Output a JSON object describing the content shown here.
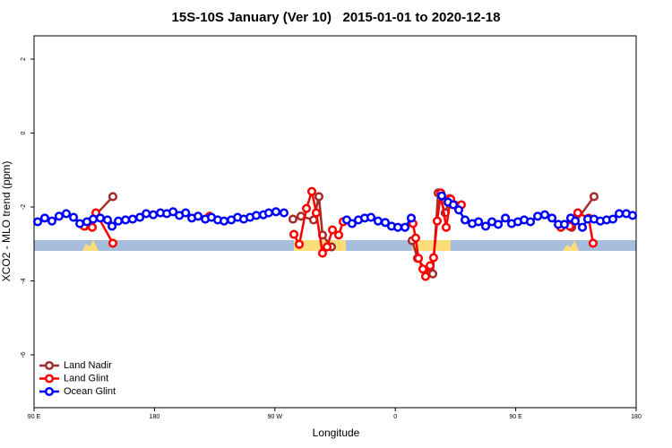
{
  "chart_data": {
    "type": "line",
    "title": "15S-10S January (Ver 10)   2015-01-01 to 2020-12-18",
    "x_label": "Longitude",
    "y_label": "XCO2 - MLO trend (ppm)",
    "xlim": [
      90,
      540
    ],
    "xticks": [
      {
        "value": 90,
        "label": "90 E"
      },
      180,
      {
        "value": 270,
        "label": "90 W"
      },
      {
        "value": 360,
        "label": "0"
      },
      {
        "value": 450,
        "label": "90 E"
      },
      {
        "value": 540,
        "label": "180"
      }
    ],
    "ylim": [
      -7.43,
      2.63
    ],
    "yticks": [
      2,
      0,
      -2,
      -4,
      -6
    ],
    "legend": "bottom-left",
    "series": [
      {
        "name": "Land Nadir",
        "color": "#a52a2a",
        "x": [
          128.2,
          148.9,
          null,
          283.5,
          289.5,
          298.9,
          302.9,
          305.6,
          312.3,
          null,
          372.6,
          376.6,
          384.0,
          388.0,
          392.0,
          397.3,
          400.7,
          null,
          491.8,
          508.5
        ],
        "values": [
          -2.52,
          -1.72,
          null,
          -2.33,
          -2.25,
          -2.35,
          -1.72,
          -2.76,
          -3.08,
          null,
          -2.91,
          -3.39,
          -3.76,
          -3.81,
          -1.62,
          -2.16,
          -1.77,
          null,
          -2.55,
          -1.72
        ]
      },
      {
        "name": "Land Glint",
        "color": "#ff0000",
        "x": [
          127.5,
          133.5,
          136.2,
          148.9,
          null,
          221.2,
          null,
          284.2,
          288.2,
          293.6,
          297.6,
          300.9,
          305.6,
          309.0,
          313.0,
          317.7,
          321.0,
          null,
          373.2,
          375.2,
          377.3,
          380.6,
          382.6,
          386.0,
          388.6,
          391.3,
          394.0,
          398.0,
          401.4,
          409.4,
          null,
          483.7,
          490.4,
          496.4,
          504.5,
          507.8
        ],
        "values": [
          -2.52,
          -2.55,
          -2.16,
          -2.98,
          null,
          -2.25,
          null,
          -2.74,
          -3.01,
          -2.04,
          -1.58,
          -2.16,
          -3.25,
          -3.08,
          -2.62,
          -2.76,
          -2.4,
          null,
          -2.45,
          -2.84,
          -3.39,
          -3.68,
          -3.88,
          -3.59,
          -3.37,
          -2.38,
          -1.62,
          -2.55,
          -1.79,
          -1.94,
          null,
          -2.55,
          -2.52,
          -2.16,
          -2.3,
          -2.98
        ]
      },
      {
        "name": "Ocean Glint",
        "color": "#0000ff",
        "x": [
          92.7,
          98.0,
          103.4,
          108.7,
          114.1,
          119.5,
          124.2,
          129.5,
          134.2,
          139.5,
          144.9,
          148.3,
          153.0,
          158.4,
          163.7,
          169.1,
          173.8,
          179.1,
          184.5,
          189.2,
          193.9,
          198.6,
          203.3,
          207.9,
          212.6,
          218.0,
          222.6,
          227.3,
          232.0,
          237.4,
          242.1,
          246.7,
          251.4,
          256.1,
          261.4,
          265.4,
          270.8,
          276.8,
          null,
          323.7,
          327.7,
          332.4,
          337.1,
          341.8,
          347.1,
          352.5,
          357.2,
          361.9,
          367.2,
          371.9,
          null,
          394.7,
          399.4,
          403.4,
          407.4,
          412.1,
          417.5,
          422.2,
          427.5,
          432.2,
          436.9,
          442.3,
          446.9,
          451.6,
          456.3,
          461.0,
          466.4,
          471.7,
          477.1,
          481.8,
          486.4,
          491.1,
          494.5,
          499.8,
          503.8,
          508.5,
          513.2,
          517.9,
          522.6,
          527.3,
          532.6,
          537.3
        ],
        "values": [
          -2.4,
          -2.3,
          -2.38,
          -2.25,
          -2.18,
          -2.28,
          -2.45,
          -2.4,
          -2.33,
          -2.3,
          -2.35,
          -2.52,
          -2.38,
          -2.35,
          -2.33,
          -2.28,
          -2.18,
          -2.21,
          -2.16,
          -2.18,
          -2.13,
          -2.23,
          -2.16,
          -2.3,
          -2.25,
          -2.33,
          -2.28,
          -2.35,
          -2.38,
          -2.35,
          -2.28,
          -2.33,
          -2.28,
          -2.23,
          -2.21,
          -2.16,
          -2.13,
          -2.16,
          null,
          -2.35,
          -2.45,
          -2.35,
          -2.3,
          -2.28,
          -2.38,
          -2.42,
          -2.52,
          -2.55,
          -2.55,
          -2.3,
          null,
          -1.7,
          -1.87,
          -1.94,
          -2.08,
          -2.35,
          -2.45,
          -2.4,
          -2.52,
          -2.4,
          -2.47,
          -2.3,
          -2.45,
          -2.4,
          -2.35,
          -2.4,
          -2.25,
          -2.21,
          -2.3,
          -2.47,
          -2.47,
          -2.3,
          -2.38,
          -2.55,
          -2.33,
          -2.33,
          -2.38,
          -2.35,
          -2.33,
          -2.18,
          -2.18,
          -2.23
        ]
      }
    ]
  }
}
